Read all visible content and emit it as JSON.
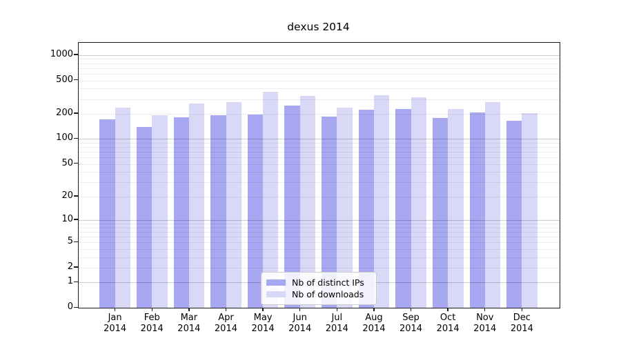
{
  "chart_data": {
    "type": "bar",
    "title": "dexus 2014",
    "categories": [
      "Jan 2014",
      "Feb 2014",
      "Mar 2014",
      "Apr 2014",
      "May 2014",
      "Jun 2014",
      "Jul 2014",
      "Aug 2014",
      "Sep 2014",
      "Oct 2014",
      "Nov 2014",
      "Dec 2014"
    ],
    "series": [
      {
        "name": "Nb of distinct IPs",
        "color": "#a7a7f2",
        "values": [
          173,
          140,
          182,
          194,
          195,
          250,
          184,
          225,
          230,
          178,
          206,
          166
        ]
      },
      {
        "name": "Nb of downloads",
        "color": "#d9d9f7",
        "values": [
          237,
          194,
          264,
          274,
          365,
          329,
          239,
          336,
          313,
          227,
          278,
          205
        ]
      }
    ],
    "xlabel": "",
    "ylabel": "",
    "yscale": "log1p",
    "ylim": [
      0,
      1400
    ],
    "yticks": [
      0,
      1,
      2,
      5,
      10,
      20,
      50,
      100,
      200,
      500,
      1000
    ],
    "grid": true,
    "legend_position": "lower center"
  },
  "style": {
    "background": "#ffffff",
    "text_color": "#000000",
    "spine_color": "#1a1a1a",
    "grid_major_rgba": "rgba(0,0,0,0.20)",
    "grid_minor_rgba": "rgba(0,0,0,0.07)",
    "legend_border_color": "#cccccc"
  }
}
